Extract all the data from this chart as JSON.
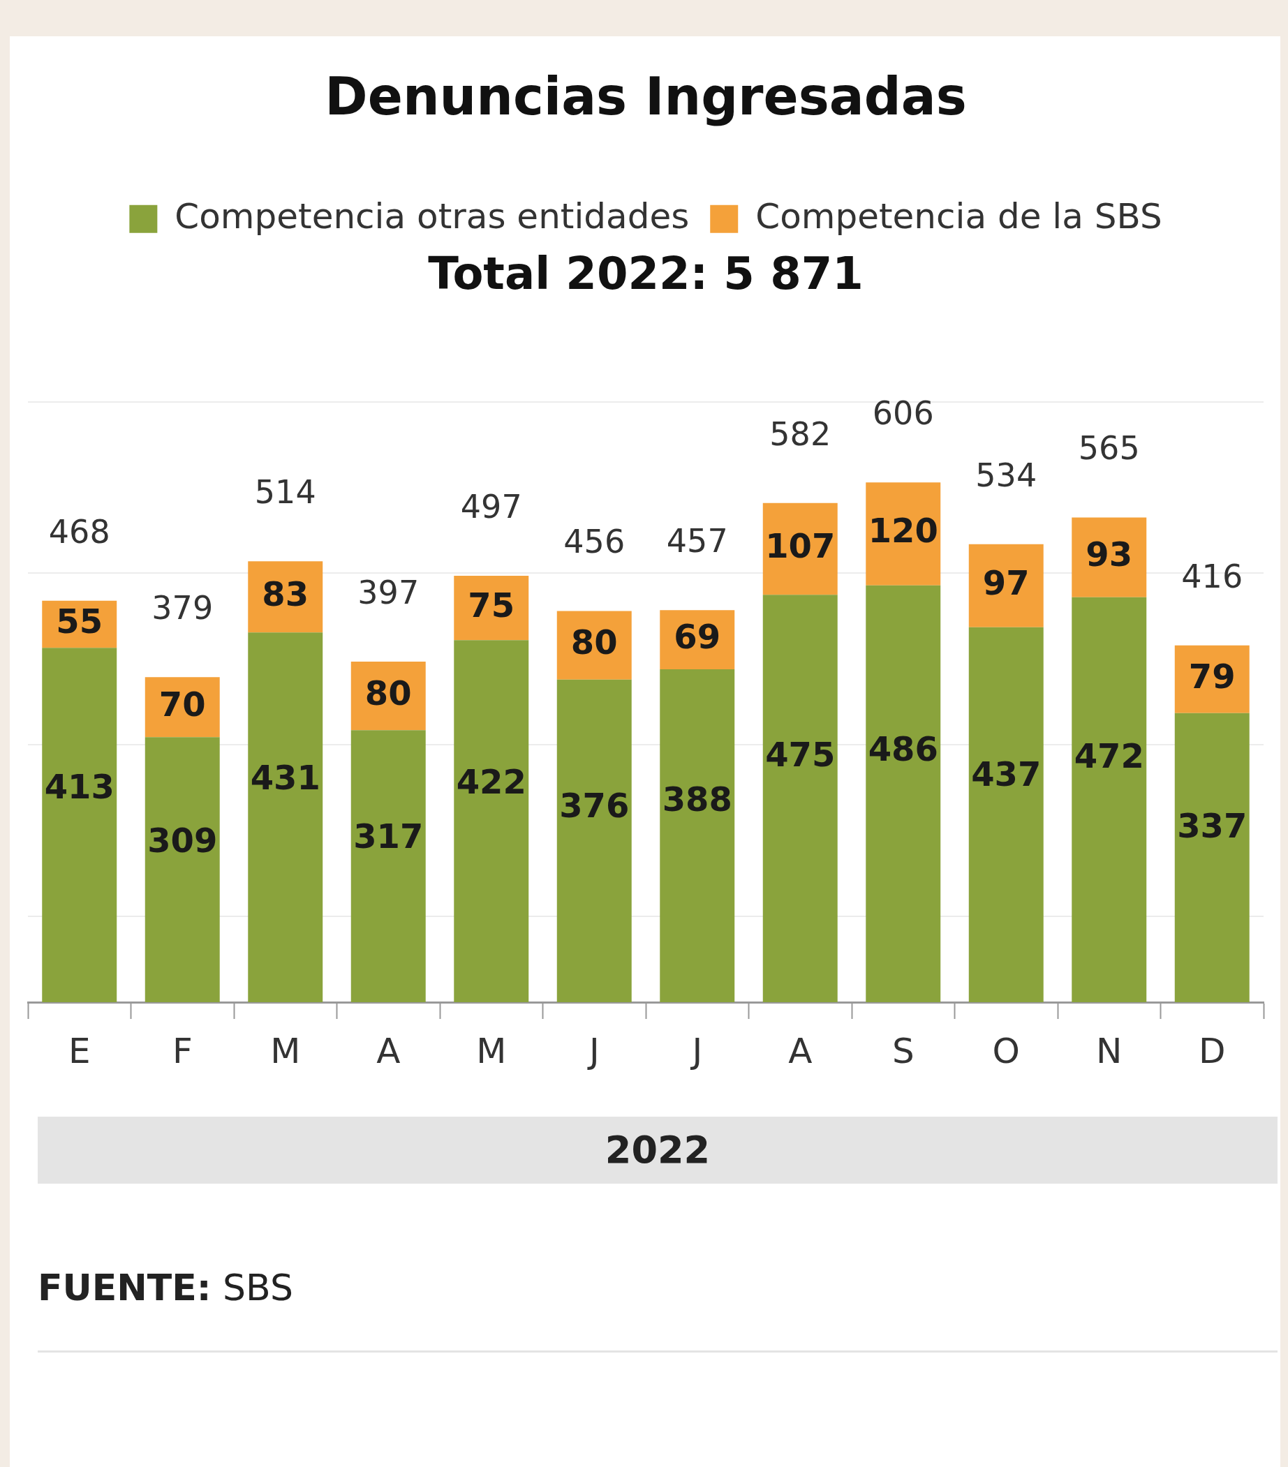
{
  "chart_data": {
    "type": "bar",
    "title": "Denuncias Ingresadas",
    "subtitle": "Total 2022: 5 871",
    "xlabel": "2022",
    "categories": [
      "E",
      "F",
      "M",
      "A",
      "M",
      "J",
      "J",
      "A",
      "S",
      "O",
      "N",
      "D"
    ],
    "series": [
      {
        "name": "Competencia otras entidades",
        "color": "#8aa33c",
        "values": [
          413,
          309,
          431,
          317,
          422,
          376,
          388,
          475,
          486,
          437,
          472,
          337
        ]
      },
      {
        "name": "Competencia de la SBS",
        "color": "#f4a13a",
        "values": [
          55,
          70,
          83,
          80,
          75,
          80,
          69,
          107,
          120,
          97,
          93,
          79
        ]
      }
    ],
    "stacked": true,
    "data_labels": true,
    "totals": [
      "468",
      "379",
      "514",
      "397",
      "497",
      "456",
      "457",
      "582",
      "606",
      "534",
      "565",
      "416"
    ],
    "ylim": [
      0,
      700
    ],
    "yticks": [
      {
        "value": 100,
        "label": null
      },
      {
        "value": 300,
        "label": null
      },
      {
        "value": 500,
        "label": null
      },
      {
        "value": 700,
        "label": null
      }
    ],
    "grid": "y",
    "tick_labels": "x",
    "legend": "top",
    "annotations": [
      "FUENTE: SBS"
    ]
  }
}
